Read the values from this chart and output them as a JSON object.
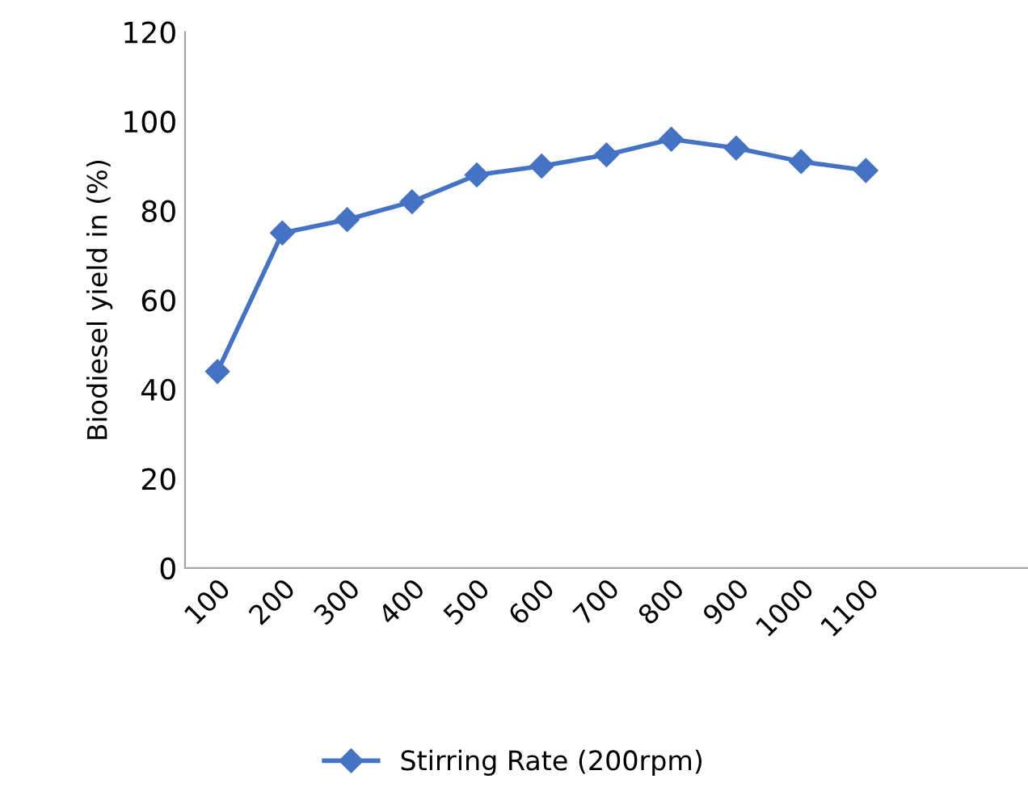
{
  "chart_data": {
    "type": "line",
    "ylabel": "Biodiesel yield in (%)",
    "categories": [
      "100",
      "200",
      "300",
      "400",
      "500",
      "600",
      "700",
      "800",
      "900",
      "1000",
      "1100",
      null,
      null
    ],
    "series": [
      {
        "name": "Stirring Rate (200rpm)",
        "color": "#4472c4",
        "values": [
          44,
          75,
          78,
          82,
          88,
          90,
          92.5,
          96,
          94,
          91,
          89,
          null,
          null
        ]
      }
    ],
    "ylim": [
      0,
      120
    ],
    "yticks": [
      0,
      20,
      40,
      60,
      80,
      100,
      120
    ],
    "grid": false,
    "legend": "bottom",
    "marker": "diamond",
    "line_style": "solid"
  }
}
